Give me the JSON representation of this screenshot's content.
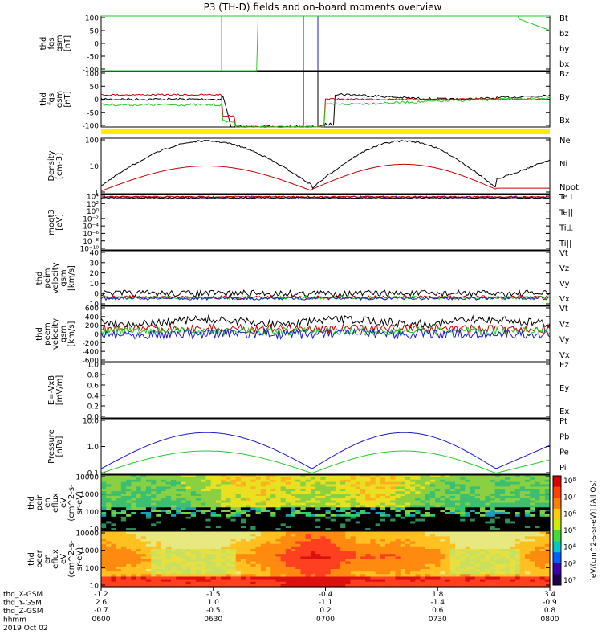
{
  "title": "P3 (TH-D) fields and on-board moments overview",
  "colors": {
    "black": "#000000",
    "red": "#cc0000",
    "green": "#22cc22",
    "blue": "#1a1acc",
    "yellow": "#ffee00"
  },
  "chart_data": {
    "type": "line",
    "x_ticks": [
      "0600",
      "0630",
      "0700",
      "0730",
      "0800"
    ],
    "x_labels_left": [
      "thd_X-GSM",
      "thd_Y-GSM",
      "thd_Z-GSM",
      "hhmm",
      "2019 Oct 02"
    ],
    "x_values": {
      "thd_X-GSM": [
        "-1.2",
        "-1.5",
        "-0.4",
        "1.8",
        "3.4"
      ],
      "thd_Y-GSM": [
        "2.6",
        "1.0",
        "-1.1",
        "-1.4",
        "-0.9"
      ],
      "thd_Z-GSM": [
        "-0.7",
        "-0.5",
        "0.2",
        "0.6",
        "0.8"
      ]
    },
    "panels": [
      {
        "id": "fgs-bt",
        "ylabel": [
          "thd",
          "fgs",
          "gsm",
          "[nT]"
        ],
        "ticks": [
          "100",
          "50",
          "0",
          "-50",
          "-100"
        ],
        "legend": [
          {
            "name": "Bt",
            "color": "#000000"
          },
          {
            "name": "bz",
            "color": "#cc0000"
          },
          {
            "name": "by",
            "color": "#22cc22"
          },
          {
            "name": "bx",
            "color": "#1a1acc"
          }
        ]
      },
      {
        "id": "fgs-gsm",
        "ylabel": [
          "thd",
          "fgs",
          "gsm",
          "[nT]"
        ],
        "ticks": [
          "100",
          "50",
          "0",
          "-50",
          "-100"
        ],
        "legend": [
          {
            "name": "Bz",
            "color": "#000000"
          },
          {
            "name": "By",
            "color": "#cc0000"
          },
          {
            "name": "Bx",
            "color": "#22cc22"
          }
        ]
      },
      {
        "id": "density",
        "ylabel": [
          "Density",
          "[cm-3]"
        ],
        "ticks": [
          "100",
          "10",
          "1"
        ],
        "legend": [
          {
            "name": "Ne",
            "color": "#cc0000"
          },
          {
            "name": "Ni",
            "color": "#000000"
          },
          {
            "name": "Npot",
            "color": "#1a1acc"
          }
        ]
      },
      {
        "id": "temperature",
        "ylabel": [
          "moqt3",
          "[eV]"
        ],
        "ticks": [
          "10⁴",
          "10²",
          "10⁰",
          "10⁻²",
          "10⁻⁴",
          "10⁻⁶",
          "10⁻⁸",
          "10⁻¹⁰"
        ],
        "legend": [
          {
            "name": "Te⊥",
            "color": "#cc0000"
          },
          {
            "name": "Te||",
            "color": "#000000"
          },
          {
            "name": "Ti⊥",
            "color": "#1a1acc"
          },
          {
            "name": "Ti||",
            "color": "#22cc22"
          }
        ]
      },
      {
        "id": "peim-velocity",
        "ylabel": [
          "thd",
          "peim",
          "velocity",
          "gsm",
          "[km/s]"
        ],
        "ticks": [
          "40",
          "30",
          "20",
          "10",
          "0",
          "-10"
        ],
        "legend": [
          {
            "name": "Vt",
            "color": "#000000"
          },
          {
            "name": "Vz",
            "color": "#cc0000"
          },
          {
            "name": "Vy",
            "color": "#22cc22"
          },
          {
            "name": "Vx",
            "color": "#1a1acc"
          }
        ]
      },
      {
        "id": "peem-velocity",
        "ylabel": [
          "thd",
          "peem",
          "velocity",
          "gsm",
          "[km/s]"
        ],
        "ticks": [
          "600",
          "400",
          "200",
          "0",
          "-200",
          "-400",
          "-600"
        ],
        "legend": [
          {
            "name": "Vt",
            "color": "#000000"
          },
          {
            "name": "Vz",
            "color": "#cc0000"
          },
          {
            "name": "Vy",
            "color": "#22cc22"
          },
          {
            "name": "Vx",
            "color": "#1a1acc"
          }
        ]
      },
      {
        "id": "efield",
        "ylabel": [
          "E=-VxB",
          "[mV/m]"
        ],
        "ticks": [
          "1.0",
          "0.8",
          "0.6",
          "0.4",
          "0.2",
          "0.0"
        ],
        "legend": [
          {
            "name": "Ez",
            "color": "#cc0000"
          },
          {
            "name": "Ey",
            "color": "#22cc22"
          },
          {
            "name": "Ex",
            "color": "#1a1acc"
          }
        ]
      },
      {
        "id": "pressure",
        "ylabel": [
          "Pressure",
          "[nPa]"
        ],
        "ticks": [
          "10.0",
          "1.0",
          "0.1"
        ],
        "legend": [
          {
            "name": "Pt",
            "color": "#000000"
          },
          {
            "name": "Pb",
            "color": "#cc0000"
          },
          {
            "name": "Pe",
            "color": "#22cc22"
          },
          {
            "name": "Pi",
            "color": "#1a1acc"
          }
        ]
      },
      {
        "id": "peir-spec",
        "ylabel": [
          "thd",
          "peir",
          "en",
          "eflux",
          "eV",
          "(cm^2-s-",
          "sr-eV)"
        ],
        "ticks": [
          "10000",
          "1000",
          "100",
          "10"
        ]
      },
      {
        "id": "peer-spec",
        "ylabel": [
          "thd",
          "peer",
          "en",
          "eflux",
          "eV",
          "(cm^2-s-",
          "sr-eV)"
        ],
        "ticks": [
          "10000",
          "1000",
          "100",
          "10"
        ]
      }
    ],
    "colorbar": {
      "ticks": [
        "10⁸",
        "10⁷",
        "10⁶",
        "10⁵",
        "10⁴",
        "10³",
        "10²"
      ],
      "label": "[eV/(cm^2-s-sr-eV)] (All Qs)"
    }
  }
}
